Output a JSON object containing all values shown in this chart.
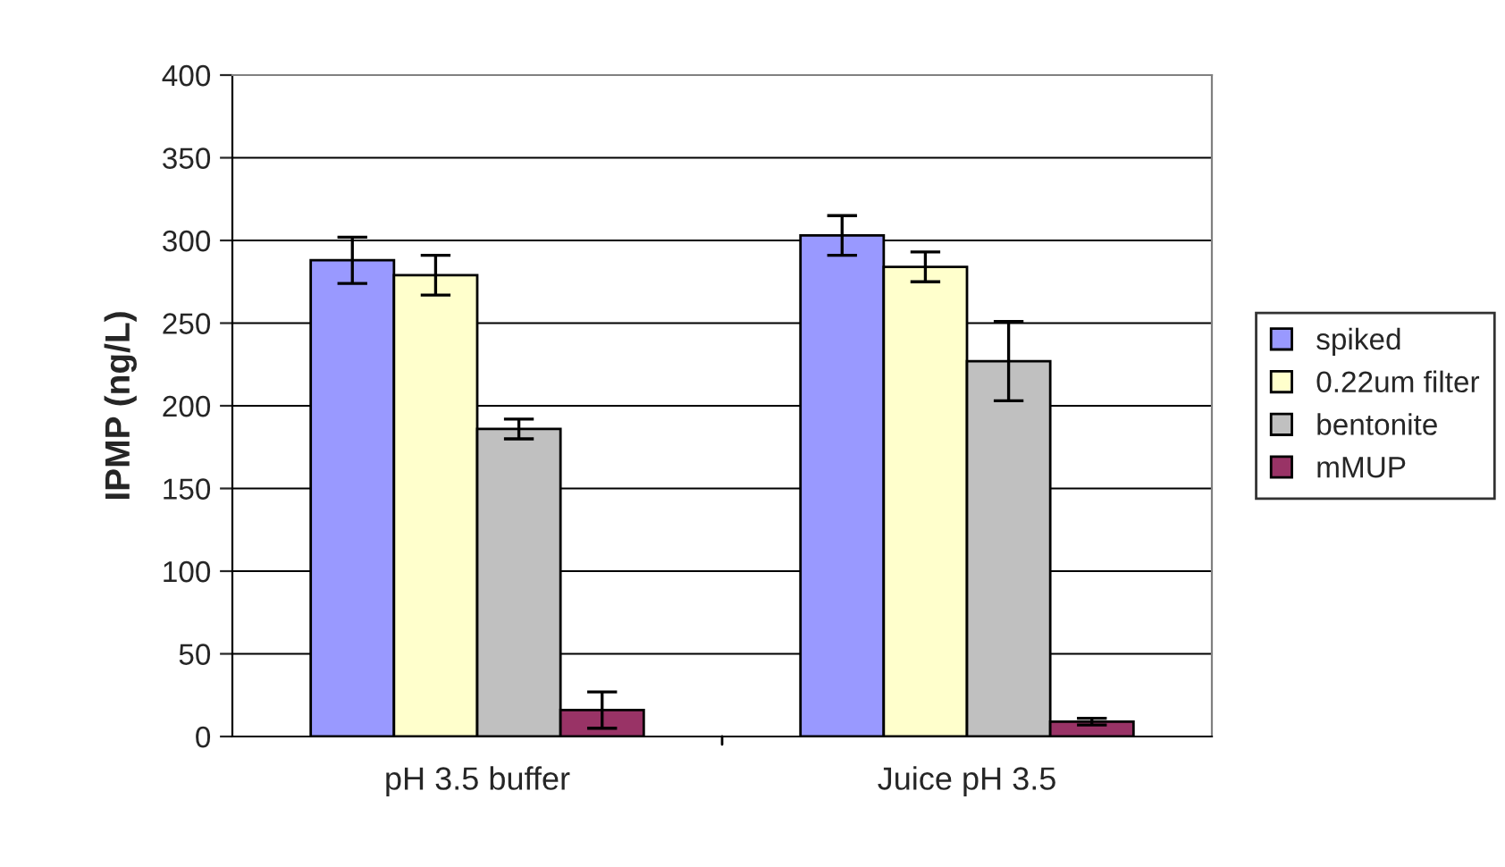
{
  "chart_data": {
    "type": "bar",
    "ylabel": "IPMP (ng/L)",
    "categories": [
      "pH 3.5 buffer",
      "Juice pH 3.5"
    ],
    "series": [
      {
        "name": "spiked",
        "color": "#9999ff",
        "values": [
          288,
          303
        ],
        "errors": [
          14,
          12
        ]
      },
      {
        "name": "0.22um filter",
        "color": "#ffffcc",
        "values": [
          279,
          284
        ],
        "errors": [
          12,
          9
        ]
      },
      {
        "name": "bentonite",
        "color": "#c0c0c0",
        "values": [
          186,
          227
        ],
        "errors": [
          6,
          24
        ]
      },
      {
        "name": "mMUP",
        "color": "#993366",
        "values": [
          16,
          9
        ],
        "errors": [
          11,
          2
        ]
      }
    ],
    "ylim": [
      0,
      400
    ],
    "yticks": [
      0,
      50,
      100,
      150,
      200,
      250,
      300,
      350,
      400
    ],
    "grid": "y",
    "legend": "right"
  }
}
